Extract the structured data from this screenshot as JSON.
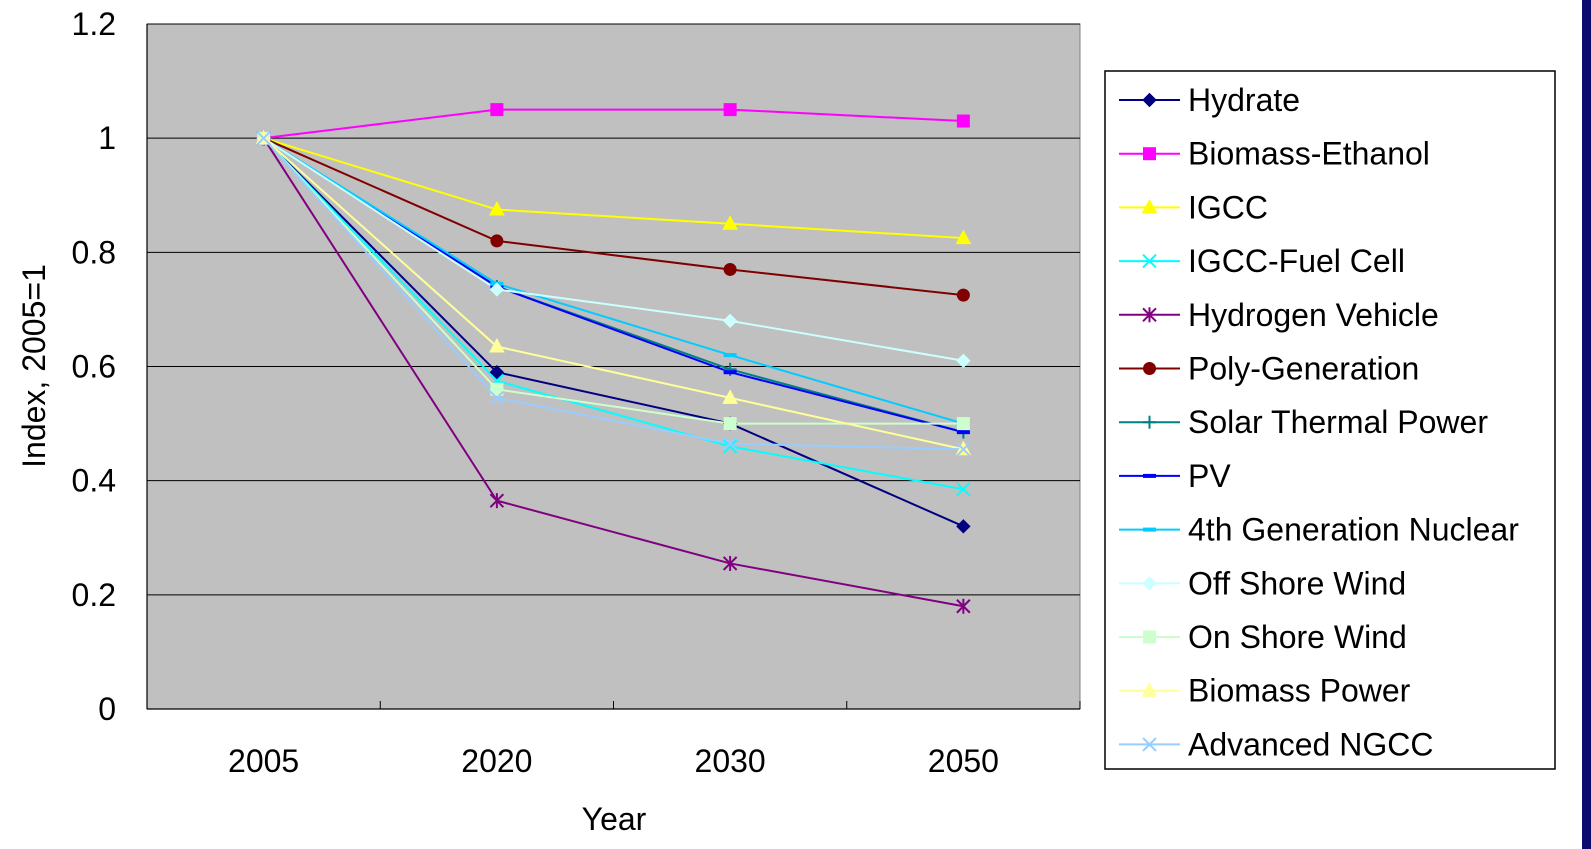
{
  "chart_data": {
    "type": "line",
    "title": "",
    "xlabel": "Year",
    "ylabel": "Index, 2005=1",
    "categories": [
      "2005",
      "2020",
      "2030",
      "2050"
    ],
    "ylim": [
      0,
      1.2
    ],
    "yticks": [
      "0",
      "0.2",
      "0.4",
      "0.6",
      "0.8",
      "1",
      "1.2"
    ],
    "grid": "horizontal",
    "plot_background": "#c0c0c0",
    "legend_position": "right",
    "series": [
      {
        "name": "Hydrate",
        "values": [
          1,
          0.59,
          0.5,
          0.32
        ],
        "color": "#000080",
        "marker": "diamond"
      },
      {
        "name": "Biomass-Ethanol",
        "values": [
          1,
          1.05,
          1.05,
          1.03
        ],
        "color": "#ff00ff",
        "marker": "square"
      },
      {
        "name": "IGCC",
        "values": [
          1,
          0.875,
          0.85,
          0.825
        ],
        "color": "#ffff00",
        "marker": "triangle"
      },
      {
        "name": "IGCC-Fuel Cell",
        "values": [
          1,
          0.575,
          0.46,
          0.385
        ],
        "color": "#00ffff",
        "marker": "x"
      },
      {
        "name": "Hydrogen Vehicle",
        "values": [
          1,
          0.365,
          0.255,
          0.18
        ],
        "color": "#800080",
        "marker": "star"
      },
      {
        "name": "Poly-Generation",
        "values": [
          1,
          0.82,
          0.77,
          0.725
        ],
        "color": "#800000",
        "marker": "circle"
      },
      {
        "name": "Solar Thermal Power",
        "values": [
          1,
          0.74,
          0.595,
          0.485
        ],
        "color": "#008080",
        "marker": "plus"
      },
      {
        "name": "PV",
        "values": [
          1,
          0.74,
          0.59,
          0.485
        ],
        "color": "#0000ff",
        "marker": "dash"
      },
      {
        "name": "4th Generation Nuclear",
        "values": [
          1,
          0.745,
          0.62,
          0.5
        ],
        "color": "#00ccff",
        "marker": "dash"
      },
      {
        "name": "Off Shore Wind",
        "values": [
          1,
          0.735,
          0.68,
          0.61
        ],
        "color": "#ccffff",
        "marker": "diamond"
      },
      {
        "name": "On Shore Wind",
        "values": [
          1,
          0.56,
          0.5,
          0.5
        ],
        "color": "#ccffcc",
        "marker": "square"
      },
      {
        "name": "Biomass Power",
        "values": [
          1,
          0.635,
          0.545,
          0.455
        ],
        "color": "#ffff99",
        "marker": "triangle"
      },
      {
        "name": "Advanced NGCC",
        "values": [
          1,
          0.545,
          0.465,
          0.455
        ],
        "color": "#99ccff",
        "marker": "x"
      }
    ]
  }
}
